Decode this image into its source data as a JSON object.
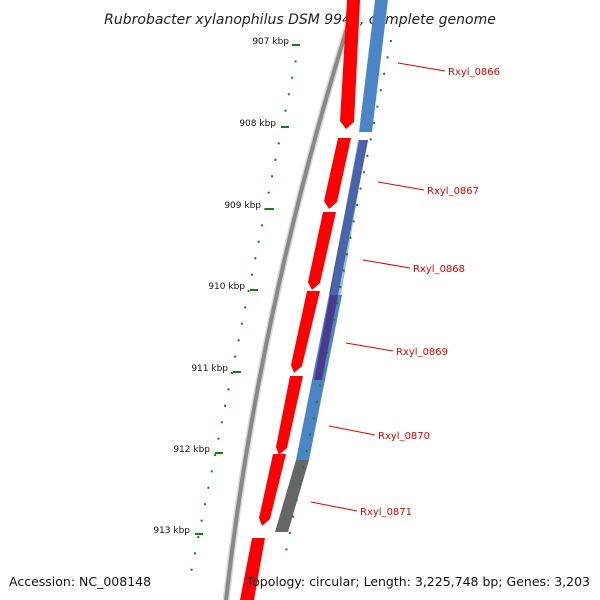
{
  "title": "Rubrobacter xylanophilus DSM 9941, complete genome",
  "footer": {
    "accession": "Accession: NC_008148",
    "topology": "Topology: circular; Length: 3,225,748 bp; Genes: 3,203"
  },
  "colors": {
    "backbone": "#888888",
    "cds_forward": "#ff0000",
    "cds_blue": "#4a86c5",
    "cds_purple": "#4b3a8c",
    "cds_gray": "#666666",
    "tick": "#1a7a1a",
    "gene_label": "#e00000"
  },
  "scale": {
    "unit": "kbp",
    "labels": [
      "907 kbp",
      "908 kbp",
      "909 kbp",
      "910 kbp",
      "911 kbp",
      "912 kbp",
      "913 kbp"
    ]
  },
  "genes": [
    {
      "label": "Rxyl_0866",
      "color": "blue"
    },
    {
      "label": "Rxyl_0867",
      "color": "purple"
    },
    {
      "label": "Rxyl_0868",
      "color": "blue"
    },
    {
      "label": "Rxyl_0869",
      "color": "purple"
    },
    {
      "label": "Rxyl_0870",
      "color": "blue"
    },
    {
      "label": "Rxyl_0871",
      "color": "gray"
    }
  ]
}
